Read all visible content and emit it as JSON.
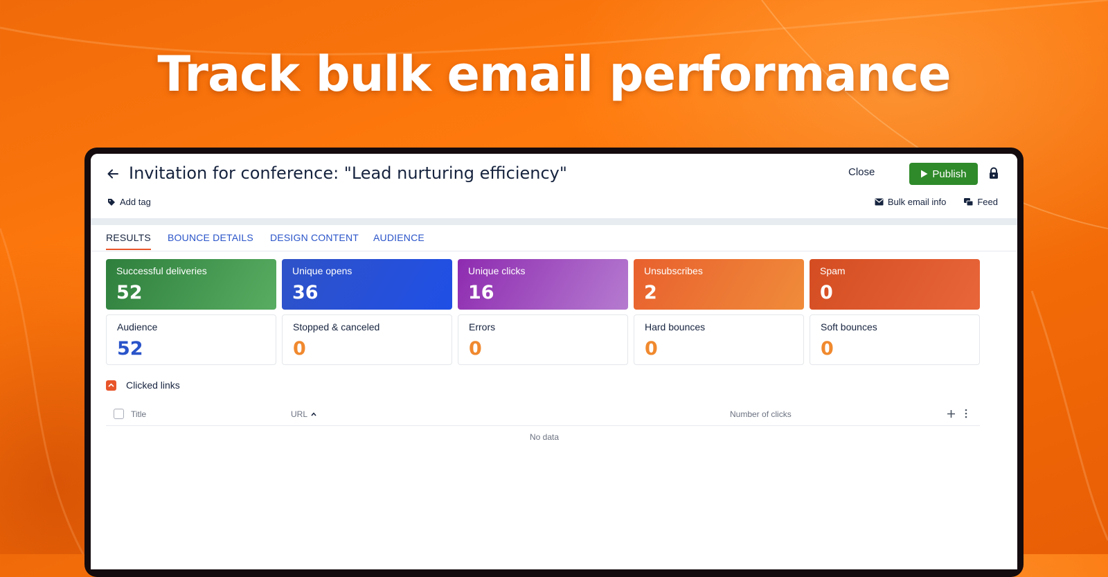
{
  "headline": "Track bulk email performance",
  "colors": {
    "publish": "#2f8a2a",
    "accent": "#e8552a",
    "link": "#2a54c9",
    "zero_value": "#f0892e"
  },
  "header": {
    "title": "Invitation for conference: \"Lead nurturing efficiency\"",
    "close_label": "Close",
    "publish_label": "Publish",
    "add_tag_label": "Add tag",
    "bulk_email_info_label": "Bulk email info",
    "feed_label": "Feed"
  },
  "tabs": [
    {
      "label": "RESULTS",
      "active": true
    },
    {
      "label": "BOUNCE DETAILS",
      "active": false
    },
    {
      "label": "DESIGN CONTENT",
      "active": false
    },
    {
      "label": "AUDIENCE",
      "active": false
    }
  ],
  "metrics_top": [
    {
      "label": "Successful deliveries",
      "value": "52"
    },
    {
      "label": "Unique opens",
      "value": "36"
    },
    {
      "label": "Unique clicks",
      "value": "16"
    },
    {
      "label": "Unsubscribes",
      "value": "2"
    },
    {
      "label": "Spam",
      "value": "0"
    }
  ],
  "metrics_bottom": [
    {
      "label": "Audience",
      "value": "52"
    },
    {
      "label": "Stopped & canceled",
      "value": "0"
    },
    {
      "label": "Errors",
      "value": "0"
    },
    {
      "label": "Hard bounces",
      "value": "0"
    },
    {
      "label": "Soft bounces",
      "value": "0"
    }
  ],
  "clicked_links": {
    "section_title": "Clicked links",
    "columns": [
      "Title",
      "URL",
      "Number of clicks"
    ],
    "empty_text": "No data"
  }
}
